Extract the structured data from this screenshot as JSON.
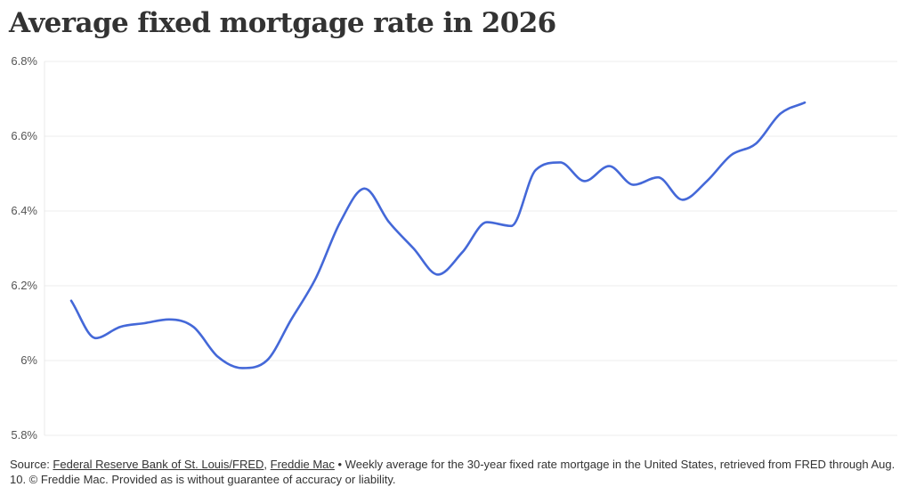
{
  "title": "Average fixed mortgage rate in 2026",
  "chart_data": {
    "type": "line",
    "title": "Average fixed mortgage rate in 2026",
    "xlabel": "",
    "ylabel": "",
    "y_ticks": [
      "5.8%",
      "6%",
      "6.2%",
      "6.4%",
      "6.6%",
      "6.8%"
    ],
    "y_tick_values": [
      5.8,
      6.0,
      6.2,
      6.4,
      6.6,
      6.8
    ],
    "ylim": [
      5.8,
      6.8
    ],
    "grid": true,
    "legend": "none",
    "series": [
      {
        "color": "#4468d8",
        "values": [
          6.16,
          6.06,
          6.09,
          6.1,
          6.11,
          6.09,
          6.01,
          5.98,
          6.0,
          6.11,
          6.22,
          6.37,
          6.46,
          6.37,
          6.3,
          6.23,
          6.29,
          6.37,
          6.36,
          6.51,
          6.53,
          6.48,
          6.52,
          6.47,
          6.49,
          6.43,
          6.48,
          6.55,
          6.58,
          6.66,
          6.69
        ]
      }
    ]
  },
  "footer": {
    "source_label": "Source: ",
    "link1": "Federal Reserve Bank of St. Louis/FRED",
    "comma": ", ",
    "link2": "Freddie Mac",
    "description": " • Weekly average for the 30-year fixed rate mortgage in the United States, retrieved from FRED through Aug. 10. © Freddie Mac. Provided as is without guarantee of accuracy or liability."
  }
}
